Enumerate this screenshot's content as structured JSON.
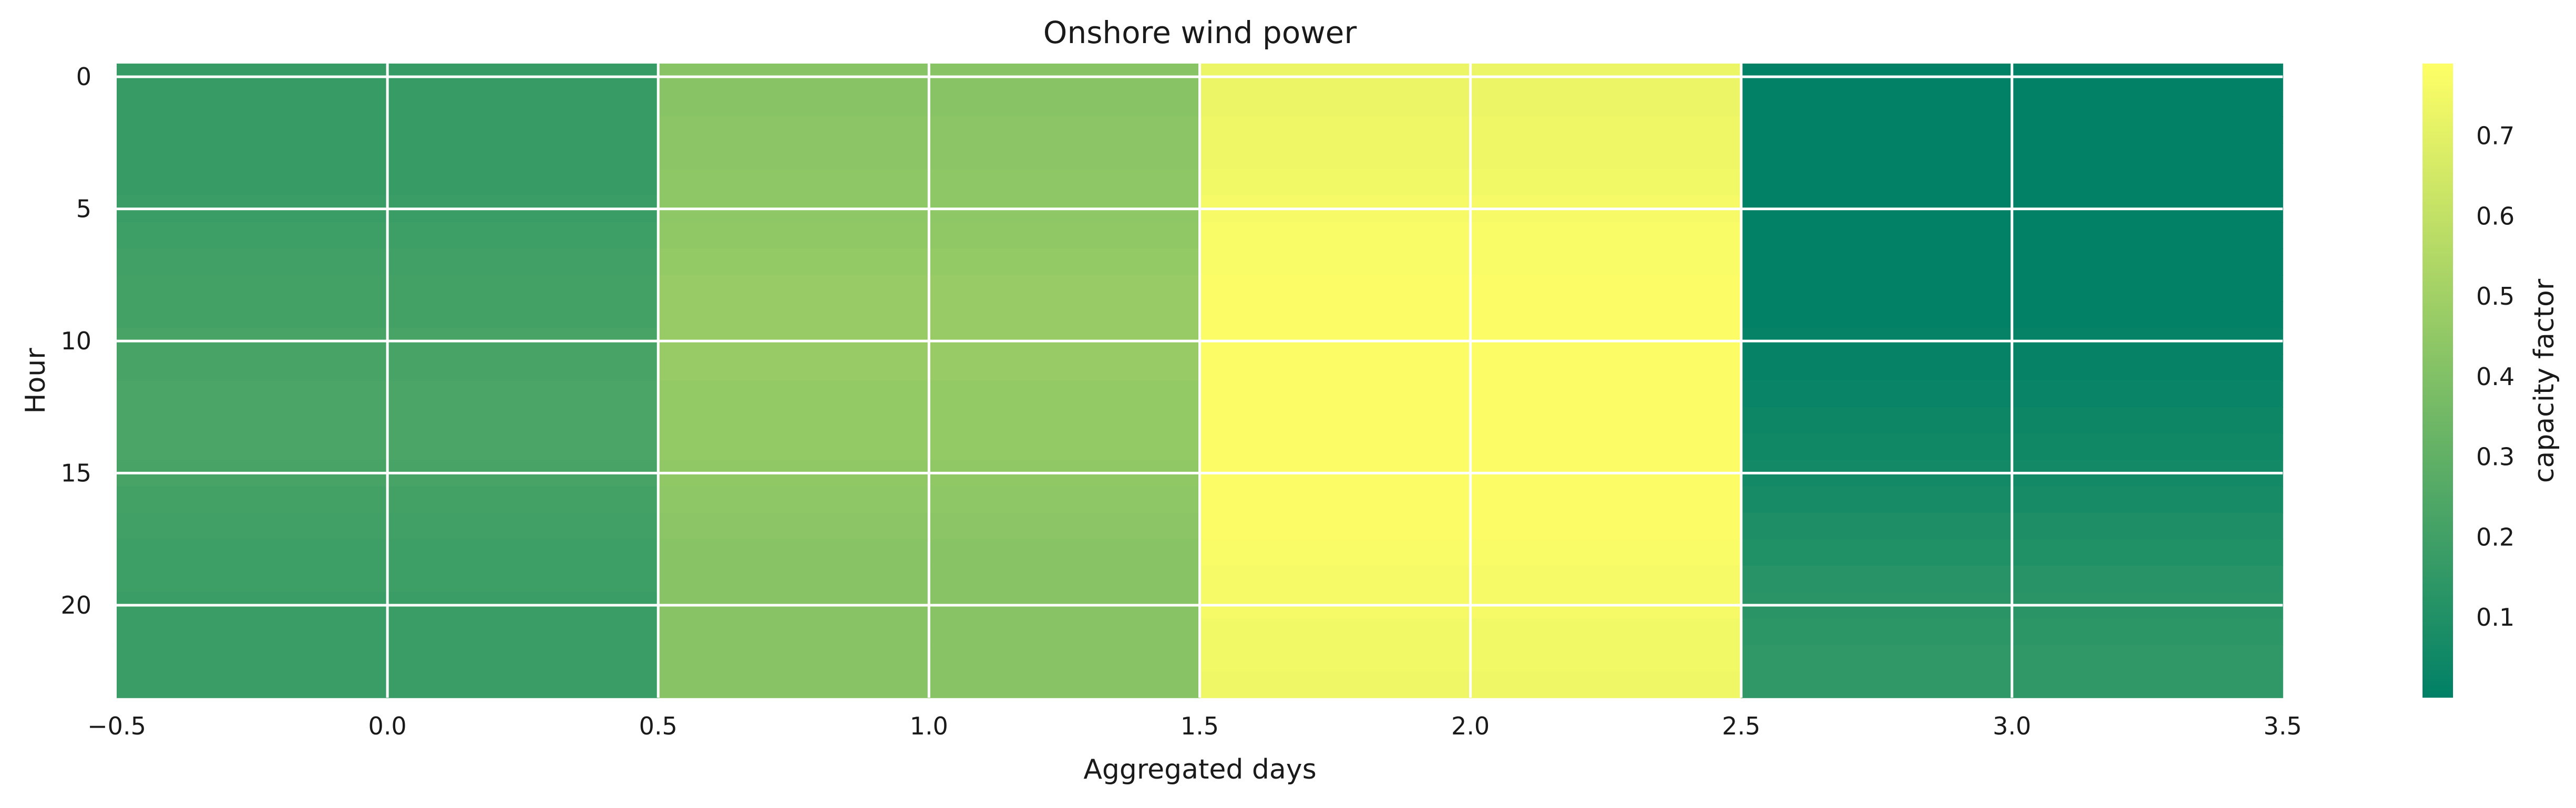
{
  "chart_data": {
    "type": "heatmap",
    "title": "Onshore wind power",
    "xlabel": "Aggregated days",
    "ylabel": "Hour",
    "colorbar_label": "capacity factor",
    "colormap": "summer",
    "color_range": [
      0.0,
      0.79
    ],
    "xlim": [
      -0.5,
      3.5
    ],
    "ylim": [
      23.5,
      -0.5
    ],
    "x_ticks": [
      -0.5,
      0.0,
      0.5,
      1.0,
      1.5,
      2.0,
      2.5,
      3.0,
      3.5
    ],
    "x_tick_labels": [
      "−0.5",
      "0.0",
      "0.5",
      "1.0",
      "1.5",
      "2.0",
      "2.5",
      "3.0",
      "3.5"
    ],
    "y_ticks": [
      0,
      5,
      10,
      15,
      20
    ],
    "y_tick_labels": [
      "0",
      "5",
      "10",
      "15",
      "20"
    ],
    "colorbar_ticks": [
      0.1,
      0.2,
      0.3,
      0.4,
      0.5,
      0.6,
      0.7
    ],
    "colorbar_tick_labels": [
      "0.1",
      "0.2",
      "0.3",
      "0.4",
      "0.5",
      "0.6",
      "0.7"
    ],
    "grid": true,
    "days": [
      0,
      1,
      2,
      3
    ],
    "hours": [
      0,
      1,
      2,
      3,
      4,
      5,
      6,
      7,
      8,
      9,
      10,
      11,
      12,
      13,
      14,
      15,
      15.5,
      17,
      18,
      19,
      20,
      21,
      22,
      23
    ],
    "series": [
      {
        "day": 0,
        "values": [
          0.17,
          0.17,
          0.17,
          0.17,
          0.17,
          0.18,
          0.19,
          0.2,
          0.21,
          0.21,
          0.22,
          0.22,
          0.23,
          0.23,
          0.23,
          0.22,
          0.21,
          0.2,
          0.19,
          0.19,
          0.18,
          0.18,
          0.18,
          0.18
        ]
      },
      {
        "day": 1,
        "values": [
          0.42,
          0.42,
          0.43,
          0.43,
          0.44,
          0.44,
          0.45,
          0.46,
          0.47,
          0.47,
          0.47,
          0.47,
          0.46,
          0.46,
          0.46,
          0.45,
          0.44,
          0.43,
          0.42,
          0.42,
          0.42,
          0.42,
          0.42,
          0.42
        ]
      },
      {
        "day": 2,
        "values": [
          0.73,
          0.73,
          0.74,
          0.74,
          0.75,
          0.76,
          0.77,
          0.77,
          0.78,
          0.78,
          0.78,
          0.78,
          0.78,
          0.78,
          0.78,
          0.78,
          0.78,
          0.78,
          0.77,
          0.76,
          0.76,
          0.75,
          0.75,
          0.74
        ]
      },
      {
        "day": 3,
        "values": [
          0.01,
          0.01,
          0.01,
          0.01,
          0.01,
          0.01,
          0.01,
          0.01,
          0.01,
          0.01,
          0.02,
          0.02,
          0.03,
          0.04,
          0.05,
          0.06,
          0.07,
          0.09,
          0.1,
          0.12,
          0.13,
          0.14,
          0.15,
          0.15
        ]
      }
    ]
  }
}
